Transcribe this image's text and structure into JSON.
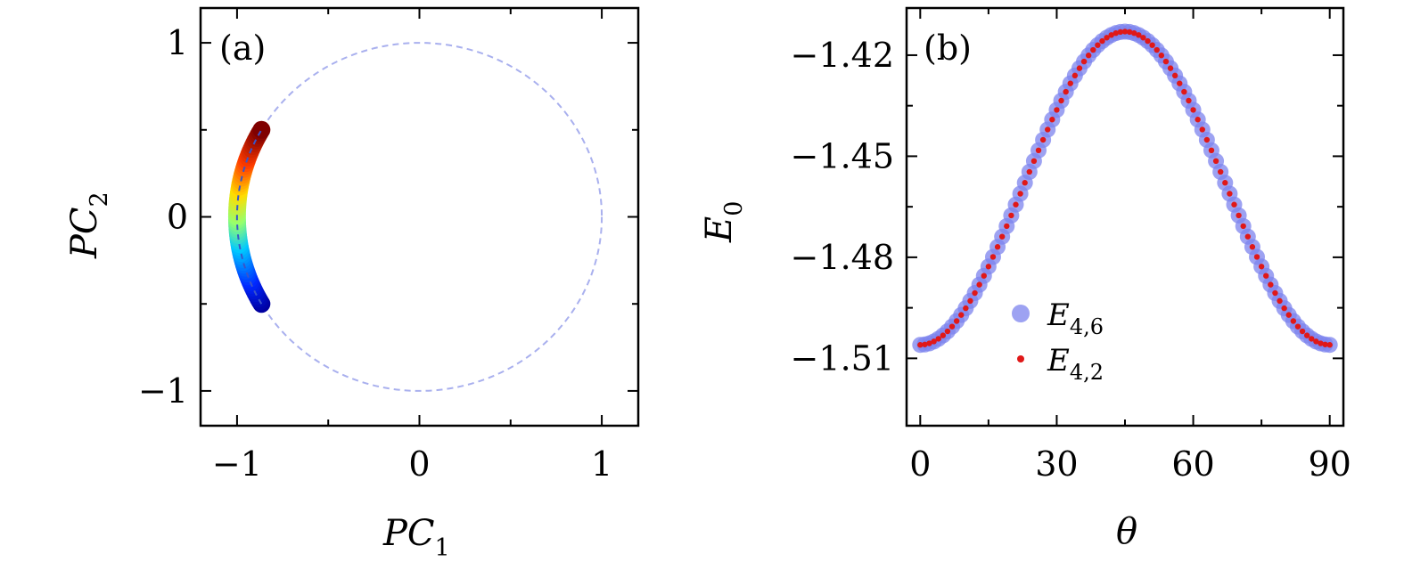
{
  "chart_data": [
    {
      "panel_label": "(a)",
      "type": "scatter",
      "xlabel": "PC",
      "xlabel_sub": "1",
      "ylabel": "PC",
      "ylabel_sub": "2",
      "xlim": [
        -1.2,
        1.2
      ],
      "ylim": [
        -1.2,
        1.2
      ],
      "xticks": [
        -1,
        0,
        1
      ],
      "xtick_labels": [
        "−1",
        "0",
        "1"
      ],
      "yticks": [
        -1,
        0,
        1
      ],
      "ytick_labels": [
        "−1",
        "0",
        "1"
      ],
      "minor_xticks": [
        -0.5,
        0.5
      ],
      "minor_yticks": [
        -0.5,
        0.5
      ],
      "reference_circle": {
        "center": [
          0,
          0
        ],
        "radius": 1.0,
        "style": "dashed",
        "color": "#a9b0ee"
      },
      "series": [
        {
          "arc_center": [
            0,
            0
          ],
          "radius": 1.0,
          "angle_start_deg": 210,
          "angle_end_deg": 150,
          "points": 61,
          "colormap": "jet",
          "color_from": "#0000a0",
          "color_to": "#800000",
          "overlay_line": {
            "style": "dashed",
            "color": "#3a55c8"
          }
        }
      ],
      "grid": false
    },
    {
      "panel_label": "(b)",
      "type": "scatter",
      "xlabel": "θ",
      "ylabel": "E",
      "ylabel_sub": "0",
      "xlim": [
        -3,
        93
      ],
      "ylim": [
        -1.53,
        -1.406
      ],
      "xticks": [
        0,
        30,
        60,
        90
      ],
      "xtick_labels": [
        "0",
        "30",
        "60",
        "90"
      ],
      "yticks": [
        -1.42,
        -1.45,
        -1.48,
        -1.51
      ],
      "ytick_labels": [
        "−1.42",
        "−1.45",
        "−1.48",
        "−1.51"
      ],
      "minor_xticks": [
        15,
        45,
        75
      ],
      "minor_yticks": [
        -1.435,
        -1.465,
        -1.495
      ],
      "curve": {
        "x_from": 0,
        "x_to": 90,
        "step": 1,
        "peak_x": 45,
        "y_min": -1.506,
        "y_max": -1.413
      },
      "series": [
        {
          "name": "E",
          "name_sub": "4,6",
          "color": "#7c83ee",
          "opacity": 0.75,
          "marker": "large-circle"
        },
        {
          "name": "E",
          "name_sub": "4,2",
          "color": "#e01818",
          "opacity": 1.0,
          "marker": "small-dot"
        }
      ],
      "legend_placement": "lower-center",
      "grid": false
    }
  ]
}
